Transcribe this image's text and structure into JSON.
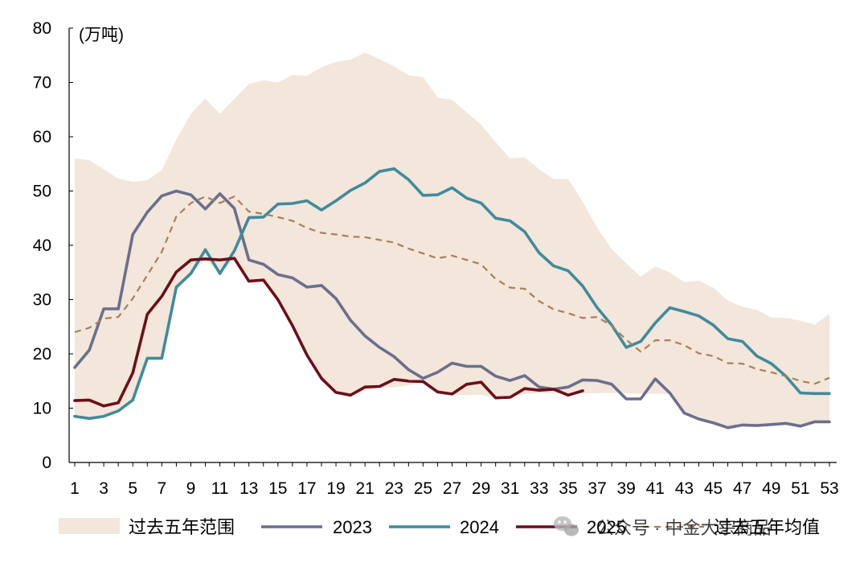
{
  "chart_data": {
    "type": "line",
    "ylabel": "(万吨)",
    "ylim": [
      0,
      80
    ],
    "yticks": [
      0,
      10,
      20,
      30,
      40,
      50,
      60,
      70,
      80
    ],
    "xlim": [
      1,
      53
    ],
    "xticks": [
      1,
      3,
      5,
      7,
      9,
      11,
      13,
      15,
      17,
      19,
      21,
      23,
      25,
      27,
      29,
      31,
      33,
      35,
      37,
      39,
      41,
      43,
      45,
      47,
      49,
      51,
      53
    ],
    "grid": false,
    "legend_position": "bottom",
    "range_band": {
      "name": "过去五年范围",
      "color": "#f3e6da",
      "upper": [
        56,
        55.7,
        54,
        52.3,
        51.7,
        52,
        53.8,
        59.5,
        64.2,
        67,
        64.2,
        67,
        69.7,
        70.4,
        70,
        71.4,
        71.2,
        72.8,
        73.8,
        74.2,
        75.5,
        74.3,
        73,
        71.3,
        71,
        67.2,
        66.8,
        64.5,
        62.2,
        59,
        56,
        56.2,
        54,
        52.2,
        52.2,
        48,
        43.2,
        39.3,
        36.7,
        34.2,
        36.1,
        35,
        33.2,
        33.5,
        32.2,
        29.8,
        28.7,
        28.1,
        26.7,
        26.6,
        26.1,
        25.4,
        27.4
      ],
      "lower": [
        8.5,
        8,
        8.5,
        9.5,
        11.5,
        19.2,
        19.2,
        32.2,
        34.8,
        37.3,
        35,
        37.3,
        33.5,
        33.7,
        30,
        25.2,
        19.8,
        15.5,
        12.9,
        12.4,
        13.2,
        13.8,
        13.9,
        14.2,
        14.7,
        13,
        12.5,
        12.4,
        12.5,
        11.8,
        12,
        12.6,
        12.8,
        12.8,
        12.7,
        12.7,
        12.8,
        12.8,
        12.8,
        12.6,
        12.7,
        12.6,
        9.2,
        8.1,
        7.3,
        6.4,
        6.9,
        6.8,
        7,
        7.2,
        6.7,
        7.5,
        7.5
      ]
    },
    "series": [
      {
        "name": "2023",
        "color": "#6a6f8e",
        "dash": false,
        "values": [
          17.5,
          20.7,
          28.3,
          28.3,
          42,
          46.1,
          49.1,
          50,
          49.3,
          46.7,
          49.5,
          46.8,
          37.3,
          36.5,
          34.6,
          34,
          32.3,
          32.6,
          30.2,
          26.2,
          23.3,
          21.2,
          19.5,
          17.1,
          15.5,
          16.6,
          18.3,
          17.7,
          17.7,
          15.9,
          15.1,
          16,
          13.9,
          13.5,
          13.9,
          15.2,
          15.1,
          14.4,
          11.7,
          11.7,
          15.4,
          12.8,
          9.1,
          8,
          7.3,
          6.4,
          6.9,
          6.8,
          7,
          7.2,
          6.7,
          7.5,
          7.5
        ]
      },
      {
        "name": "2024",
        "color": "#3f8b9e",
        "dash": false,
        "values": [
          8.5,
          8.1,
          8.5,
          9.5,
          11.5,
          19.2,
          19.2,
          32.3,
          34.8,
          39.2,
          34.8,
          39,
          45.1,
          45.2,
          47.6,
          47.7,
          48.2,
          46.5,
          48.2,
          50.1,
          51.5,
          53.6,
          54.1,
          52.1,
          49.2,
          49.3,
          50.6,
          48.7,
          47.8,
          45,
          44.5,
          42.5,
          38.6,
          36.2,
          35.3,
          32.5,
          28.5,
          25.3,
          21.2,
          22.3,
          25.7,
          28.5,
          27.8,
          27,
          25.3,
          22.8,
          22.3,
          19.6,
          18.2,
          15.9,
          12.8,
          12.7,
          12.7
        ]
      },
      {
        "name": "2025",
        "color": "#6b0f1a",
        "dash": false,
        "values": [
          11.4,
          11.5,
          10.4,
          11,
          16.5,
          27.3,
          30.6,
          35.1,
          37.3,
          37.5,
          37.3,
          37.6,
          33.4,
          33.6,
          30,
          25.2,
          19.8,
          15.5,
          12.9,
          12.4,
          13.9,
          14,
          15.3,
          15,
          14.9,
          13,
          12.6,
          14.4,
          14.8,
          11.9,
          12,
          13.6,
          13.3,
          13.5,
          12.4,
          13.2
        ]
      },
      {
        "name": "过去五年均值",
        "color": "#a7805a",
        "dash": true,
        "values": [
          24,
          24.8,
          26.5,
          26.8,
          30.2,
          34.5,
          38.8,
          45.3,
          47.8,
          49,
          47.8,
          49,
          46.2,
          45.8,
          45.2,
          44.5,
          43.2,
          42.3,
          42,
          41.6,
          41.5,
          41,
          40.5,
          39.4,
          38.5,
          37.6,
          38.1,
          37.3,
          36.5,
          33.8,
          32.2,
          32,
          29.7,
          28.2,
          27.5,
          26.6,
          26.8,
          25.2,
          22.6,
          20.4,
          22.5,
          22.5,
          21.6,
          20.1,
          19.6,
          18.3,
          18.2,
          17.2,
          16.6,
          15.9,
          15,
          14.5,
          15.6
        ]
      }
    ],
    "legend": [
      "过去五年范围",
      "2023",
      "2024",
      "2025",
      "过去五年均值"
    ]
  },
  "watermark": {
    "text": "公众号 · 中金大宗商品",
    "icon": "wechat-icon"
  }
}
